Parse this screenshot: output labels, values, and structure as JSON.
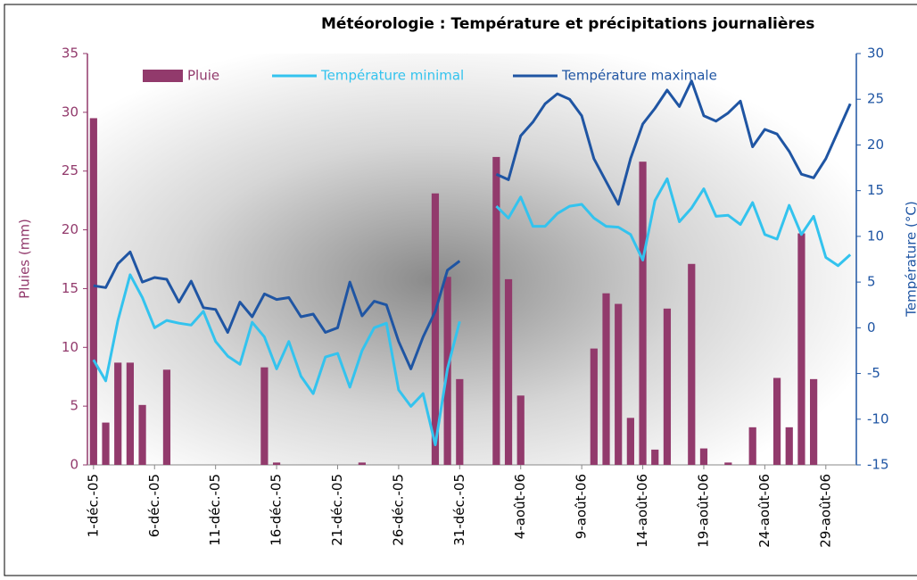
{
  "chart_data": {
    "type": "bar",
    "title": "Météorologie : Température et précipitations journalières",
    "categories": [
      "1-déc.-05",
      null,
      null,
      null,
      null,
      "6-déc.-05",
      null,
      null,
      null,
      null,
      "11-déc.-05",
      null,
      null,
      null,
      null,
      "16-déc.-05",
      null,
      null,
      null,
      null,
      "21-déc.-05",
      null,
      null,
      null,
      null,
      "26-déc.-05",
      null,
      null,
      null,
      null,
      "31-déc.-05",
      null,
      null,
      null,
      null,
      "4-août-06",
      null,
      null,
      null,
      null,
      "9-août-06",
      null,
      null,
      null,
      null,
      "14-août-06",
      null,
      null,
      null,
      null,
      "19-août-06",
      null,
      null,
      null,
      null,
      "24-août-06",
      null,
      null,
      null,
      null,
      "29-août-06",
      null,
      null
    ],
    "series": [
      {
        "name": "Pluie",
        "type": "bar",
        "color": "#923a6c",
        "axis": "y",
        "values": [
          29.5,
          3.6,
          8.7,
          8.7,
          5.1,
          0,
          8.1,
          0,
          0,
          0,
          0,
          0,
          0,
          0,
          8.3,
          0.2,
          0,
          0,
          0,
          0,
          0,
          0,
          0.2,
          0,
          0,
          0,
          0,
          0,
          23.1,
          16.0,
          7.3,
          null,
          0,
          26.2,
          15.8,
          5.9,
          0,
          0,
          0,
          0,
          0,
          9.9,
          14.6,
          13.7,
          4.0,
          25.8,
          1.3,
          13.3,
          0,
          17.1,
          1.4,
          0,
          0.2,
          0,
          3.2,
          0,
          7.4,
          3.2,
          19.7,
          7.3,
          0,
          0,
          0
        ]
      },
      {
        "name": "Température minimal",
        "type": "line",
        "color": "#33c3ee",
        "axis": "y2",
        "values": [
          -3.5,
          -5.8,
          0.8,
          5.8,
          3.3,
          0.0,
          0.8,
          0.5,
          0.3,
          1.8,
          -1.5,
          -3.1,
          -4.0,
          0.6,
          -1.0,
          -4.5,
          -1.5,
          -5.3,
          -7.2,
          -3.2,
          -2.8,
          -6.5,
          -2.5,
          0.0,
          0.5,
          -6.8,
          -8.6,
          -7.2,
          -12.8,
          -4.5,
          0.7,
          null,
          null,
          13.3,
          12.0,
          14.3,
          11.1,
          11.1,
          12.5,
          13.3,
          13.5,
          12.0,
          11.1,
          11.0,
          10.2,
          7.4,
          13.9,
          16.3,
          11.6,
          13.1,
          15.2,
          12.2,
          12.3,
          11.3,
          13.7,
          10.2,
          9.7,
          13.4,
          10.2,
          12.2,
          7.7,
          6.8,
          8.0
        ]
      },
      {
        "name": "Température maximale",
        "type": "line",
        "color": "#1f55a3",
        "axis": "y2",
        "values": [
          4.6,
          4.4,
          7.0,
          8.3,
          5.0,
          5.5,
          5.3,
          2.8,
          5.1,
          2.2,
          2.0,
          -0.5,
          2.8,
          1.2,
          3.7,
          3.1,
          3.3,
          1.2,
          1.5,
          -0.5,
          0.0,
          5.0,
          1.3,
          2.9,
          2.5,
          -1.5,
          -4.5,
          -1.0,
          1.8,
          6.3,
          7.3,
          null,
          null,
          16.8,
          16.2,
          21.0,
          22.5,
          24.5,
          25.6,
          25.0,
          23.2,
          18.5,
          16.0,
          13.5,
          18.5,
          22.3,
          24.0,
          26.0,
          24.2,
          27.0,
          23.2,
          22.6,
          23.5,
          24.8,
          19.8,
          21.7,
          21.2,
          19.3,
          16.8,
          16.4,
          18.5,
          21.5,
          24.5
        ]
      }
    ],
    "ylabel": "Pluies (mm)",
    "y2label": "Température (°C)",
    "ylim": [
      0,
      35
    ],
    "yticks": [
      0,
      5,
      10,
      15,
      20,
      25,
      30,
      35
    ],
    "y2lim": [
      -15,
      30
    ],
    "y2ticks": [
      -15,
      -10,
      -5,
      0,
      5,
      10,
      15,
      20,
      25,
      30
    ],
    "legend": "top"
  }
}
